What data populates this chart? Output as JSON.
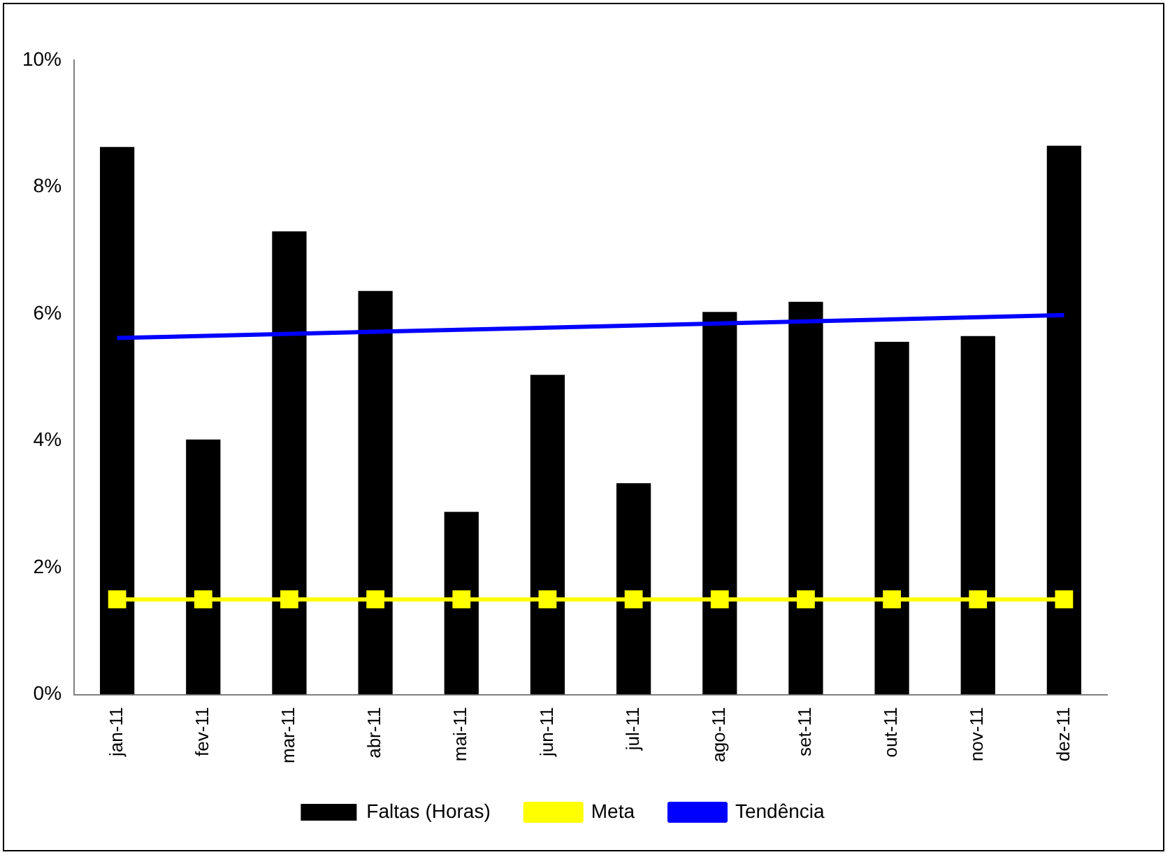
{
  "chart_data": {
    "type": "bar",
    "categories": [
      "jan-11",
      "fev-11",
      "mar-11",
      "abr-11",
      "mai-11",
      "jun-11",
      "jul-11",
      "ago-11",
      "set-11",
      "out-11",
      "nov-11",
      "dez-11"
    ],
    "series": [
      {
        "name": "Faltas (Horas)",
        "color": "#000000",
        "values": [
          8.63,
          4.02,
          7.3,
          6.36,
          2.88,
          5.04,
          3.33,
          6.03,
          6.19,
          5.56,
          5.65,
          8.65
        ]
      },
      {
        "name": "Meta",
        "type": "line",
        "color": "#ffff00",
        "marker": "square",
        "values": [
          1.5,
          1.5,
          1.5,
          1.5,
          1.5,
          1.5,
          1.5,
          1.5,
          1.5,
          1.5,
          1.5,
          1.5
        ]
      },
      {
        "name": "Tendência",
        "type": "line",
        "color": "#0000ff",
        "marker": "none",
        "x": [
          "jan-11",
          "dez-11"
        ],
        "values": [
          5.62,
          5.98
        ]
      }
    ],
    "ylim": [
      0,
      10
    ],
    "yticks": [
      {
        "value": 0,
        "label": "0%"
      },
      {
        "value": 2,
        "label": "2%"
      },
      {
        "value": 4,
        "label": "4%"
      },
      {
        "value": 6,
        "label": "6%"
      },
      {
        "value": 8,
        "label": "8%"
      },
      {
        "value": 10,
        "label": "10%"
      }
    ],
    "grid": false,
    "legend": "bottom"
  }
}
